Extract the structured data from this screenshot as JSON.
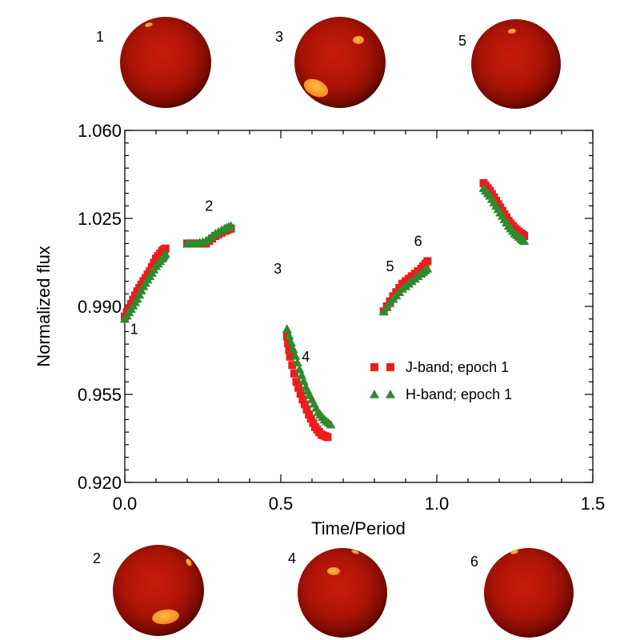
{
  "chart_data": {
    "type": "scatter",
    "xlabel": "Time/Period",
    "ylabel": "Normalized flux",
    "xlim": [
      0.0,
      1.5
    ],
    "ylim": [
      0.92,
      1.06
    ],
    "xticks": [
      0.0,
      0.5,
      1.0,
      1.5
    ],
    "xtick_labels": [
      "0.0",
      "0.5",
      "1.0",
      "1.5"
    ],
    "yticks": [
      0.92,
      0.955,
      0.99,
      1.025,
      1.06
    ],
    "ytick_labels": [
      "0.920",
      "0.955",
      "0.990",
      "1.025",
      "1.060"
    ],
    "grid": false,
    "legend_position": "middle-right",
    "series": [
      {
        "name": "J-band; epoch 1",
        "marker": "square",
        "color": "#ee1c1c",
        "segments": [
          {
            "x": [
              0.0,
              0.02,
              0.04,
              0.06,
              0.08,
              0.1,
              0.12,
              0.13
            ],
            "y": [
              0.986,
              0.991,
              0.996,
              1.0,
              1.004,
              1.009,
              1.012,
              1.013
            ]
          },
          {
            "x": [
              0.2,
              0.23,
              0.26,
              0.29,
              0.32,
              0.34
            ],
            "y": [
              1.015,
              1.015,
              1.015,
              1.018,
              1.02,
              1.021
            ]
          },
          {
            "x": [
              0.52,
              0.53,
              0.55,
              0.57,
              0.59,
              0.61,
              0.63,
              0.65
            ],
            "y": [
              0.978,
              0.97,
              0.96,
              0.953,
              0.947,
              0.942,
              0.939,
              0.938
            ]
          },
          {
            "x": [
              0.83,
              0.86,
              0.89,
              0.92,
              0.95,
              0.97
            ],
            "y": [
              0.988,
              0.994,
              0.999,
              1.002,
              1.005,
              1.008
            ]
          },
          {
            "x": [
              1.15,
              1.17,
              1.19,
              1.21,
              1.23,
              1.25,
              1.27,
              1.28
            ],
            "y": [
              1.039,
              1.036,
              1.032,
              1.028,
              1.024,
              1.021,
              1.019,
              1.018
            ]
          }
        ]
      },
      {
        "name": "H-band; epoch 1",
        "marker": "triangle",
        "color": "#2e8a2e",
        "segments": [
          {
            "x": [
              0.0,
              0.02,
              0.04,
              0.06,
              0.08,
              0.1,
              0.12,
              0.13
            ],
            "y": [
              0.985,
              0.989,
              0.993,
              0.998,
              1.002,
              1.006,
              1.009,
              1.011
            ]
          },
          {
            "x": [
              0.2,
              0.23,
              0.26,
              0.29,
              0.32,
              0.34
            ],
            "y": [
              1.015,
              1.015,
              1.016,
              1.019,
              1.021,
              1.022
            ]
          },
          {
            "x": [
              0.52,
              0.54,
              0.56,
              0.58,
              0.6,
              0.62,
              0.64,
              0.66
            ],
            "y": [
              0.981,
              0.973,
              0.965,
              0.958,
              0.953,
              0.948,
              0.945,
              0.943
            ]
          },
          {
            "x": [
              0.83,
              0.86,
              0.89,
              0.92,
              0.95,
              0.97
            ],
            "y": [
              0.988,
              0.993,
              0.997,
              1.0,
              1.003,
              1.005
            ]
          },
          {
            "x": [
              1.15,
              1.17,
              1.19,
              1.21,
              1.23,
              1.25,
              1.27,
              1.28
            ],
            "y": [
              1.037,
              1.034,
              1.03,
              1.026,
              1.022,
              1.019,
              1.017,
              1.016
            ]
          }
        ]
      }
    ],
    "annotations": [
      {
        "text": "1",
        "x": 0.03,
        "y": 0.979
      },
      {
        "text": "2",
        "x": 0.27,
        "y": 1.028
      },
      {
        "text": "3",
        "x": 0.49,
        "y": 1.003
      },
      {
        "text": "4",
        "x": 0.58,
        "y": 0.968
      },
      {
        "text": "5",
        "x": 0.85,
        "y": 1.004
      },
      {
        "text": "6",
        "x": 0.94,
        "y": 1.014
      }
    ]
  },
  "star_panels": [
    {
      "label": "1",
      "row": "top"
    },
    {
      "label": "3",
      "row": "top"
    },
    {
      "label": "5",
      "row": "top"
    },
    {
      "label": "2",
      "row": "bottom"
    },
    {
      "label": "4",
      "row": "bottom"
    },
    {
      "label": "6",
      "row": "bottom"
    }
  ],
  "colors": {
    "j_band": "#ee1c1c",
    "h_band": "#2e8a2e",
    "star_core": "#c21a0a",
    "star_edge": "#5a0600",
    "spot": "#ffa033"
  }
}
